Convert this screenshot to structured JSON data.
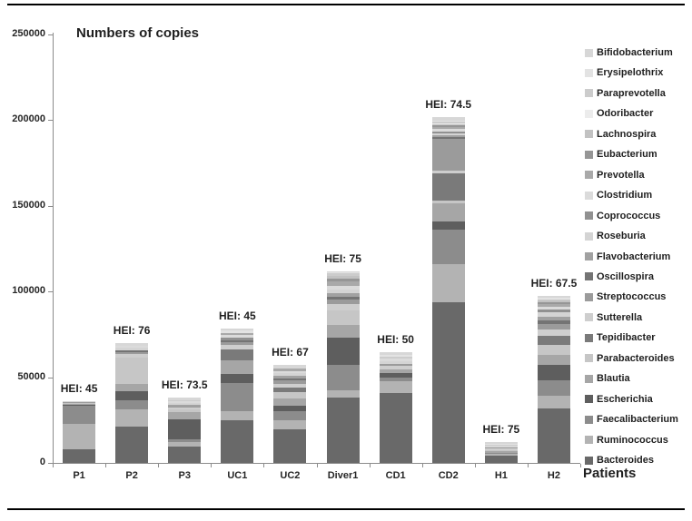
{
  "chart_data": {
    "type": "bar",
    "stacked": true,
    "title": "Numbers of copies",
    "xlabel": "Patients",
    "ylabel": "",
    "ylim": [
      0,
      250000
    ],
    "grid": false,
    "legend_position": "right",
    "yticks": [
      {
        "value": 250000,
        "label": "250000"
      },
      {
        "value": 200000,
        "label": "200000"
      },
      {
        "value": 150000,
        "label": "150000"
      },
      {
        "value": 100000,
        "label": "100000"
      },
      {
        "value": 50000,
        "label": "50000"
      },
      {
        "value": 0,
        "label": "0"
      }
    ],
    "categories": [
      "P1",
      "P2",
      "P3",
      "UC1",
      "UC2",
      "Diver1",
      "CD1",
      "CD2",
      "H1",
      "H2"
    ],
    "bar_labels": [
      "HEI: 45",
      "HEI: 76",
      "HEI: 73.5",
      "HEI: 45",
      "HEI: 67",
      "HEI: 75",
      "HEI: 50",
      "HEI: 74.5",
      "HEI: 75",
      "HEI: 67.5"
    ],
    "series": [
      {
        "name": "Bacteroides",
        "color": "#696969",
        "values": [
          8000,
          21000,
          9500,
          25000,
          19600,
          38000,
          40700,
          94000,
          4200,
          32000
        ]
      },
      {
        "name": "Ruminococcus",
        "color": "#b3b3b3",
        "values": [
          15000,
          10500,
          2600,
          5300,
          5300,
          4200,
          7000,
          22000,
          1000,
          7000
        ]
      },
      {
        "name": "Faecalibacterium",
        "color": "#8c8c8c",
        "values": [
          10500,
          5300,
          1600,
          16400,
          5300,
          15000,
          2000,
          20000,
          800,
          9000
        ]
      },
      {
        "name": "Escherichia",
        "color": "#5e5e5e",
        "values": [
          500,
          5300,
          11600,
          5300,
          3200,
          16000,
          2500,
          4800,
          0,
          9000
        ]
      },
      {
        "name": "Blautia",
        "color": "#a6a6a6",
        "values": [
          500,
          4200,
          4200,
          8000,
          4200,
          7500,
          2300,
          10600,
          800,
          5800
        ]
      },
      {
        "name": "Parabacteroides",
        "color": "#c6c6c6",
        "values": [
          500,
          15300,
          1500,
          0,
          3700,
          8500,
          0,
          1600,
          700,
          6000
        ]
      },
      {
        "name": "Tepidibacter",
        "color": "#7a7a7a",
        "values": [
          0,
          0,
          0,
          6300,
          2600,
          0,
          0,
          16000,
          0,
          5600
        ]
      },
      {
        "name": "Sutterella",
        "color": "#cecece",
        "values": [
          400,
          2000,
          1200,
          2500,
          2400,
          3500,
          2000,
          1500,
          800,
          3700
        ]
      },
      {
        "name": "Streptococcus",
        "color": "#9b9b9b",
        "values": [
          300,
          1200,
          900,
          1500,
          1800,
          2500,
          1500,
          18500,
          600,
          3200
        ]
      },
      {
        "name": "Oscillospira",
        "color": "#747474",
        "values": [
          0,
          1000,
          0,
          1200,
          1300,
          1600,
          0,
          1000,
          0,
          2000
        ]
      },
      {
        "name": "Flavobacterium",
        "color": "#a1a1a1",
        "values": [
          0,
          0,
          800,
          0,
          1300,
          2000,
          0,
          1000,
          0,
          2000
        ]
      },
      {
        "name": "Roseburia",
        "color": "#d4d4d4",
        "values": [
          0,
          1500,
          1000,
          0,
          1600,
          2500,
          1500,
          1500,
          700,
          2500
        ]
      },
      {
        "name": "Coprococcus",
        "color": "#919191",
        "values": [
          0,
          0,
          0,
          1500,
          0,
          0,
          0,
          1000,
          0,
          1500
        ]
      },
      {
        "name": "Clostridium",
        "color": "#dbdbdb",
        "values": [
          0,
          1200,
          900,
          1500,
          1400,
          2200,
          1500,
          1500,
          600,
          2000
        ]
      },
      {
        "name": "Prevotella",
        "color": "#a9a9a9",
        "values": [
          0,
          0,
          0,
          1500,
          1300,
          2500,
          0,
          1000,
          0,
          1500
        ]
      },
      {
        "name": "Eubacterium",
        "color": "#969696",
        "values": [
          0,
          0,
          0,
          0,
          0,
          1500,
          0,
          800,
          0,
          1000
        ]
      },
      {
        "name": "Lachnospira",
        "color": "#c2c2c2",
        "values": [
          0,
          0,
          0,
          0,
          0,
          1500,
          0,
          800,
          0,
          1000
        ]
      },
      {
        "name": "Odoribacter",
        "color": "#ececec",
        "values": [
          0,
          0,
          0,
          0,
          0,
          0,
          0,
          700,
          0,
          0
        ]
      },
      {
        "name": "Paraprevotella",
        "color": "#cccccc",
        "values": [
          0,
          0,
          1000,
          0,
          0,
          1500,
          1200,
          700,
          600,
          800
        ]
      },
      {
        "name": "Erysipelothrix",
        "color": "#e3e3e3",
        "values": [
          0,
          0,
          0,
          1200,
          0,
          800,
          1000,
          500,
          500,
          700
        ]
      },
      {
        "name": "Bifidobacterium",
        "color": "#d7d7d7",
        "values": [
          300,
          1500,
          1200,
          1300,
          2000,
          700,
          1300,
          2500,
          700,
          1000
        ]
      }
    ],
    "legend_order_top_to_bottom": [
      "Bifidobacterium",
      "Erysipelothrix",
      "Paraprevotella",
      "Odoribacter",
      "Lachnospira",
      "Eubacterium",
      "Prevotella",
      "Clostridium",
      "Coprococcus",
      "Roseburia",
      "Flavobacterium",
      "Oscillospira",
      "Streptococcus",
      "Sutterella",
      "Tepidibacter",
      "Parabacteroides",
      "Blautia",
      "Escherichia",
      "Faecalibacterium",
      "Ruminococcus",
      "Bacteroides"
    ]
  }
}
